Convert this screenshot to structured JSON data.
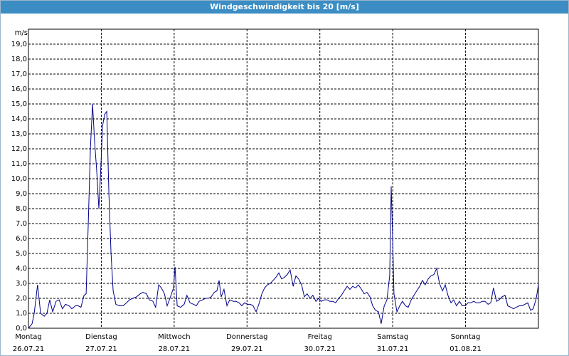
{
  "chart_data": {
    "type": "line",
    "title": "Windgeschwindigkeit bis 20 [m/s]",
    "y_unit": "m/s",
    "xlim": [
      0,
      168
    ],
    "ylim": [
      0,
      20
    ],
    "xticks": [
      {
        "value": 0,
        "label": "Montag",
        "date": "26.07.21"
      },
      {
        "value": 24,
        "label": "Dienstag",
        "date": "27.07.21"
      },
      {
        "value": 48,
        "label": "Mittwoch",
        "date": "28.07.21"
      },
      {
        "value": 72,
        "label": "Donnerstag",
        "date": "29.07.21"
      },
      {
        "value": 96,
        "label": "Freitag",
        "date": "30.07.21"
      },
      {
        "value": 120,
        "label": "Samstag",
        "date": "31.07.21"
      },
      {
        "value": 144,
        "label": "Sonntag",
        "date": "01.08.21"
      }
    ],
    "yticks": [
      {
        "value": 0,
        "label": "0,0"
      },
      {
        "value": 1,
        "label": "1,0"
      },
      {
        "value": 2,
        "label": "2,0"
      },
      {
        "value": 3,
        "label": "3,0"
      },
      {
        "value": 4,
        "label": "4,0"
      },
      {
        "value": 5,
        "label": "5,0"
      },
      {
        "value": 6,
        "label": "6,0"
      },
      {
        "value": 7,
        "label": "7,0"
      },
      {
        "value": 8,
        "label": "8,0"
      },
      {
        "value": 9,
        "label": "9,0"
      },
      {
        "value": 10,
        "label": "10,0"
      },
      {
        "value": 11,
        "label": "11,0"
      },
      {
        "value": 12,
        "label": "12,0"
      },
      {
        "value": 13,
        "label": "13,0"
      },
      {
        "value": 14,
        "label": "14,0"
      },
      {
        "value": 15,
        "label": "15,0"
      },
      {
        "value": 16,
        "label": "16,0"
      },
      {
        "value": 17,
        "label": "17,0"
      },
      {
        "value": 18,
        "label": "18,0"
      },
      {
        "value": 19,
        "label": "19,0"
      }
    ],
    "grid": true,
    "series": [
      {
        "color": "#00008b",
        "x": [
          0,
          1.2,
          1.9,
          3.0,
          4.0,
          5.2,
          6.1,
          7.0,
          8.0,
          9.1,
          10.1,
          11.2,
          12.2,
          13.4,
          14.3,
          15.5,
          16.4,
          17.3,
          18.3,
          19.0,
          19.7,
          20.4,
          21.1,
          21.8,
          22.5,
          23.2,
          23.9,
          24.4,
          25.1,
          25.8,
          26.5,
          27.2,
          27.9,
          28.8,
          30.0,
          31.2,
          32.3,
          33.3,
          34.4,
          35.6,
          36.8,
          37.7,
          38.9,
          39.8,
          41.0,
          41.9,
          42.9,
          43.8,
          44.8,
          45.7,
          46.6,
          47.8,
          48.3,
          49.0,
          50.1,
          51.3,
          52.2,
          53.2,
          54.4,
          55.3,
          56.2,
          57.4,
          58.3,
          59.3,
          60.2,
          61.2,
          62.1,
          62.8,
          63.5,
          64.4,
          65.4,
          66.3,
          67.5,
          68.4,
          69.4,
          70.3,
          71.2,
          72.2,
          73.1,
          74.0,
          75.0,
          75.9,
          76.9,
          77.8,
          78.7,
          79.7,
          80.6,
          81.5,
          82.5,
          83.4,
          84.3,
          85.3,
          86.2,
          87.2,
          88.1,
          89.0,
          90.0,
          90.9,
          91.8,
          92.8,
          93.7,
          94.7,
          95.6,
          96.5,
          97.5,
          98.4,
          99.3,
          100.3,
          101.2,
          102.2,
          103.1,
          104.0,
          105.0,
          105.9,
          106.8,
          107.8,
          108.7,
          109.7,
          110.6,
          111.5,
          112.5,
          113.4,
          114.3,
          115.3,
          116.2,
          117.2,
          118.1,
          119.0,
          119.5,
          120.0,
          120.4,
          121.4,
          122.3,
          123.2,
          124.2,
          125.1,
          126.1,
          127.0,
          127.9,
          128.9,
          129.8,
          130.7,
          131.7,
          132.6,
          133.6,
          134.5,
          135.4,
          136.4,
          137.3,
          138.2,
          139.2,
          140.1,
          141.0,
          142.0,
          142.9,
          143.9,
          144.8,
          145.7,
          146.7,
          147.6,
          148.5,
          149.5,
          150.4,
          151.4,
          152.3,
          153.2,
          154.2,
          155.1,
          156.0,
          157.0,
          157.9,
          158.9,
          159.8,
          160.7,
          161.7,
          162.6,
          163.5,
          164.5,
          165.4,
          166.3,
          167.3,
          168.0
        ],
        "values": [
          0.0,
          0.3,
          1.0,
          2.9,
          1.0,
          0.8,
          1.0,
          1.9,
          1.1,
          1.8,
          1.9,
          1.3,
          1.6,
          1.5,
          1.3,
          1.5,
          1.5,
          1.4,
          2.2,
          2.3,
          7.0,
          12.0,
          15.0,
          12.5,
          10.5,
          8.0,
          11.0,
          13.5,
          14.3,
          14.5,
          9.0,
          5.0,
          2.5,
          1.6,
          1.5,
          1.5,
          1.7,
          1.9,
          2.0,
          2.1,
          2.3,
          2.4,
          2.3,
          1.9,
          1.8,
          1.4,
          2.9,
          2.7,
          2.3,
          1.5,
          2.0,
          2.7,
          4.1,
          1.5,
          1.4,
          1.6,
          2.2,
          1.7,
          1.6,
          1.5,
          1.8,
          1.9,
          2.0,
          2.0,
          2.1,
          2.4,
          2.5,
          3.2,
          2.1,
          2.6,
          1.5,
          1.9,
          1.8,
          1.8,
          1.7,
          1.5,
          1.7,
          1.6,
          1.6,
          1.5,
          1.1,
          1.6,
          2.3,
          2.7,
          2.9,
          3.0,
          3.2,
          3.4,
          3.7,
          3.3,
          3.4,
          3.6,
          3.9,
          2.8,
          3.5,
          3.3,
          2.9,
          2.1,
          2.3,
          2.0,
          2.2,
          1.8,
          2.0,
          1.8,
          1.9,
          1.9,
          1.8,
          1.8,
          1.7,
          2.0,
          2.2,
          2.5,
          2.8,
          2.6,
          2.8,
          2.7,
          2.9,
          2.6,
          2.3,
          2.4,
          2.1,
          1.5,
          1.2,
          1.1,
          0.3,
          1.5,
          1.9,
          3.5,
          9.5,
          6.0,
          2.3,
          1.1,
          1.5,
          1.8,
          1.5,
          1.4,
          1.9,
          2.2,
          2.5,
          2.8,
          3.2,
          2.9,
          3.3,
          3.5,
          3.6,
          4.0,
          3.0,
          2.5,
          2.9,
          2.2,
          1.7,
          1.9,
          1.5,
          1.8,
          1.5,
          1.5,
          1.7,
          1.7,
          1.8,
          1.7,
          1.7,
          1.8,
          1.8,
          1.6,
          1.7,
          2.7,
          1.8,
          1.9,
          2.1,
          2.2,
          1.5,
          1.4,
          1.3,
          1.4,
          1.5,
          1.5,
          1.6,
          1.7,
          1.2,
          1.3,
          2.0,
          2.9
        ]
      }
    ]
  }
}
